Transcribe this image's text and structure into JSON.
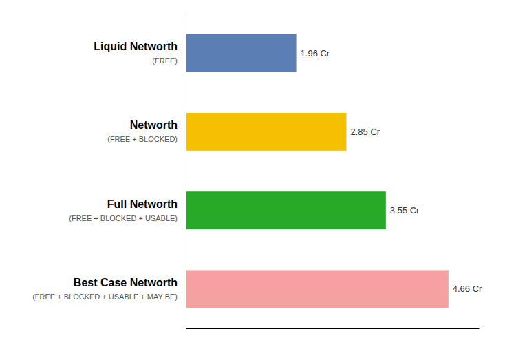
{
  "chart_data": {
    "type": "bar",
    "orientation": "horizontal",
    "categories": [
      "Liquid Networth",
      "Networth",
      "Full Networth",
      "Best Case Networth"
    ],
    "subtitles": [
      "(FREE)",
      "(FREE + BLOCKED)",
      "(FREE + BLOCKED + USABLE)",
      "(FREE + BLOCKED + USABLE + MAY BE)"
    ],
    "values": [
      1.96,
      2.85,
      3.55,
      4.66
    ],
    "value_labels": [
      "1.96 Cr",
      "2.85 Cr",
      "3.55 Cr",
      "4.66 Cr"
    ],
    "colors": [
      "#5B7FB5",
      "#F5C000",
      "#28A828",
      "#F4A0A0"
    ],
    "xlim": [
      0,
      5.2
    ],
    "xticks": [],
    "data_labels": true,
    "tick_labels": "y",
    "grid": false
  }
}
